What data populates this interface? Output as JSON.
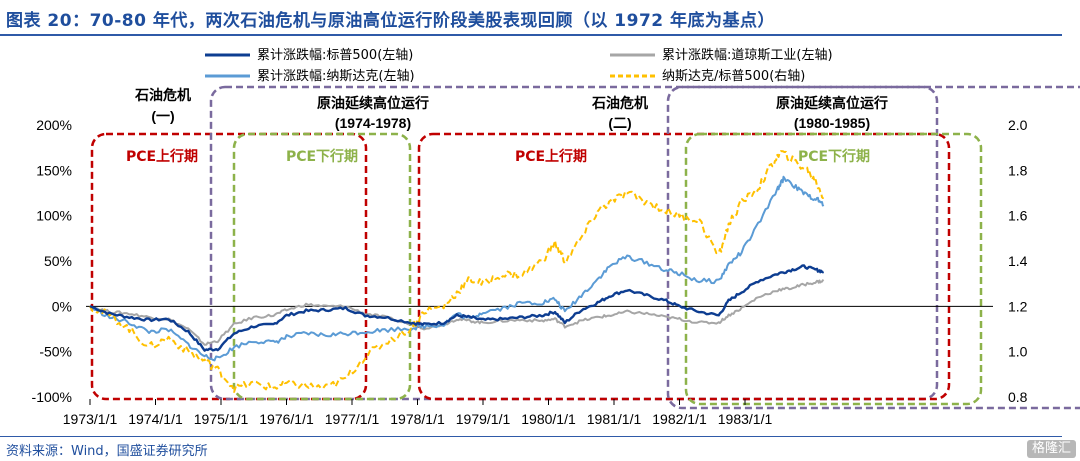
{
  "header": {
    "title": "图表 20：70-80 年代，两次石油危机与原油高位运行阶段美股表现回顾（以 1972 年底为基点）"
  },
  "footer": {
    "source": "资料来源：Wind，国盛证券研究所",
    "watermark": "格隆汇"
  },
  "chart_data": {
    "type": "line",
    "x_ticks": [
      "1973/1/1",
      "1974/1/1",
      "1975/1/1",
      "1976/1/1",
      "1977/1/1",
      "1978/1/1",
      "1979/1/1",
      "1980/1/1",
      "1981/1/1",
      "1982/1/1",
      "1983/1/1"
    ],
    "left_axis": {
      "ticks": [
        "-100%",
        "-50%",
        "0%",
        "50%",
        "100%",
        "150%",
        "200%"
      ],
      "range": [
        -1.0,
        2.0
      ]
    },
    "right_axis": {
      "ticks": [
        "0.8",
        "1.0",
        "1.2",
        "1.4",
        "1.6",
        "1.8",
        "2.0"
      ],
      "range": [
        0.8,
        2.0
      ]
    },
    "grid": false,
    "legend_position": "top",
    "series": [
      {
        "name": "累计涨跌幅:标普500(左轴)",
        "axis": "left",
        "color": "#0d3d91",
        "style": "solid",
        "points": [
          [
            1973.0,
            0.0
          ],
          [
            1973.3,
            -0.08
          ],
          [
            1973.6,
            -0.12
          ],
          [
            1973.9,
            -0.15
          ],
          [
            1974.2,
            -0.14
          ],
          [
            1974.5,
            -0.28
          ],
          [
            1974.75,
            -0.48
          ],
          [
            1974.95,
            -0.47
          ],
          [
            1975.2,
            -0.3
          ],
          [
            1975.5,
            -0.22
          ],
          [
            1975.8,
            -0.2
          ],
          [
            1976.0,
            -0.1
          ],
          [
            1976.3,
            -0.05
          ],
          [
            1976.6,
            -0.04
          ],
          [
            1976.9,
            -0.02
          ],
          [
            1977.2,
            -0.1
          ],
          [
            1977.5,
            -0.12
          ],
          [
            1977.9,
            -0.18
          ],
          [
            1978.1,
            -0.2
          ],
          [
            1978.4,
            -0.18
          ],
          [
            1978.6,
            -0.1
          ],
          [
            1978.8,
            -0.12
          ],
          [
            1979.0,
            -0.15
          ],
          [
            1979.3,
            -0.14
          ],
          [
            1979.6,
            -0.12
          ],
          [
            1979.9,
            -0.1
          ],
          [
            1980.1,
            -0.06
          ],
          [
            1980.25,
            -0.18
          ],
          [
            1980.5,
            -0.04
          ],
          [
            1980.75,
            0.04
          ],
          [
            1980.95,
            0.12
          ],
          [
            1981.2,
            0.18
          ],
          [
            1981.5,
            0.12
          ],
          [
            1981.8,
            0.06
          ],
          [
            1982.0,
            0.0
          ],
          [
            1982.3,
            -0.06
          ],
          [
            1982.6,
            -0.1
          ],
          [
            1982.75,
            0.06
          ],
          [
            1982.95,
            0.16
          ],
          [
            1983.2,
            0.28
          ],
          [
            1983.5,
            0.36
          ],
          [
            1983.7,
            0.4
          ],
          [
            1983.9,
            0.44
          ],
          [
            1984.1,
            0.4
          ],
          [
            1984.2,
            0.38
          ]
        ]
      },
      {
        "name": "累计涨跌幅:道琼斯工业(左轴)",
        "axis": "left",
        "color": "#a6a6a6",
        "style": "solid",
        "points": [
          [
            1973.0,
            0.0
          ],
          [
            1973.3,
            -0.06
          ],
          [
            1973.6,
            -0.08
          ],
          [
            1973.9,
            -0.12
          ],
          [
            1974.2,
            -0.14
          ],
          [
            1974.5,
            -0.25
          ],
          [
            1974.75,
            -0.42
          ],
          [
            1974.95,
            -0.38
          ],
          [
            1975.2,
            -0.2
          ],
          [
            1975.5,
            -0.12
          ],
          [
            1975.8,
            -0.1
          ],
          [
            1976.0,
            -0.04
          ],
          [
            1976.3,
            0.02
          ],
          [
            1976.6,
            0.0
          ],
          [
            1976.9,
            0.0
          ],
          [
            1977.2,
            -0.08
          ],
          [
            1977.5,
            -0.12
          ],
          [
            1977.9,
            -0.2
          ],
          [
            1978.1,
            -0.24
          ],
          [
            1978.4,
            -0.2
          ],
          [
            1978.6,
            -0.14
          ],
          [
            1978.8,
            -0.16
          ],
          [
            1979.0,
            -0.18
          ],
          [
            1979.3,
            -0.16
          ],
          [
            1979.6,
            -0.15
          ],
          [
            1979.9,
            -0.16
          ],
          [
            1980.1,
            -0.14
          ],
          [
            1980.25,
            -0.22
          ],
          [
            1980.5,
            -0.16
          ],
          [
            1980.75,
            -0.12
          ],
          [
            1980.95,
            -0.1
          ],
          [
            1981.2,
            -0.06
          ],
          [
            1981.5,
            -0.08
          ],
          [
            1981.8,
            -0.12
          ],
          [
            1982.0,
            -0.14
          ],
          [
            1982.3,
            -0.18
          ],
          [
            1982.6,
            -0.18
          ],
          [
            1982.75,
            -0.1
          ],
          [
            1982.95,
            -0.02
          ],
          [
            1983.2,
            0.1
          ],
          [
            1983.5,
            0.18
          ],
          [
            1983.7,
            0.2
          ],
          [
            1983.9,
            0.24
          ],
          [
            1984.1,
            0.27
          ],
          [
            1984.2,
            0.28
          ]
        ]
      },
      {
        "name": "累计涨跌幅:纳斯达克(左轴)",
        "axis": "left",
        "color": "#5b9bd5",
        "style": "solid",
        "points": [
          [
            1973.0,
            0.0
          ],
          [
            1973.3,
            -0.12
          ],
          [
            1973.6,
            -0.18
          ],
          [
            1973.9,
            -0.28
          ],
          [
            1974.2,
            -0.26
          ],
          [
            1974.5,
            -0.42
          ],
          [
            1974.75,
            -0.55
          ],
          [
            1974.95,
            -0.58
          ],
          [
            1975.2,
            -0.45
          ],
          [
            1975.5,
            -0.38
          ],
          [
            1975.8,
            -0.4
          ],
          [
            1976.0,
            -0.34
          ],
          [
            1976.3,
            -0.3
          ],
          [
            1976.6,
            -0.32
          ],
          [
            1976.9,
            -0.3
          ],
          [
            1977.2,
            -0.28
          ],
          [
            1977.5,
            -0.26
          ],
          [
            1977.9,
            -0.24
          ],
          [
            1978.1,
            -0.22
          ],
          [
            1978.4,
            -0.2
          ],
          [
            1978.6,
            -0.08
          ],
          [
            1978.8,
            -0.14
          ],
          [
            1979.0,
            -0.06
          ],
          [
            1979.3,
            -0.02
          ],
          [
            1979.6,
            0.04
          ],
          [
            1979.9,
            0.04
          ],
          [
            1980.1,
            0.08
          ],
          [
            1980.25,
            -0.06
          ],
          [
            1980.5,
            0.12
          ],
          [
            1980.75,
            0.3
          ],
          [
            1980.95,
            0.45
          ],
          [
            1981.2,
            0.55
          ],
          [
            1981.5,
            0.48
          ],
          [
            1981.8,
            0.4
          ],
          [
            1982.0,
            0.36
          ],
          [
            1982.3,
            0.28
          ],
          [
            1982.6,
            0.28
          ],
          [
            1982.75,
            0.46
          ],
          [
            1982.95,
            0.6
          ],
          [
            1983.2,
            0.9
          ],
          [
            1983.5,
            1.3
          ],
          [
            1983.6,
            1.42
          ],
          [
            1983.8,
            1.3
          ],
          [
            1983.95,
            1.22
          ],
          [
            1984.1,
            1.18
          ],
          [
            1984.2,
            1.12
          ]
        ]
      },
      {
        "name": "纳斯达克/标普500(右轴)",
        "axis": "right",
        "color": "#ffc000",
        "style": "dashed",
        "points": [
          [
            1973.0,
            1.2
          ],
          [
            1973.3,
            1.16
          ],
          [
            1973.6,
            1.1
          ],
          [
            1973.9,
            1.02
          ],
          [
            1974.2,
            1.06
          ],
          [
            1974.5,
            1.0
          ],
          [
            1974.75,
            0.96
          ],
          [
            1974.95,
            0.92
          ],
          [
            1975.2,
            0.84
          ],
          [
            1975.5,
            0.86
          ],
          [
            1975.8,
            0.84
          ],
          [
            1976.0,
            0.86
          ],
          [
            1976.3,
            0.85
          ],
          [
            1976.6,
            0.84
          ],
          [
            1976.9,
            0.88
          ],
          [
            1977.2,
            0.98
          ],
          [
            1977.5,
            1.04
          ],
          [
            1977.9,
            1.1
          ],
          [
            1978.1,
            1.18
          ],
          [
            1978.4,
            1.2
          ],
          [
            1978.6,
            1.26
          ],
          [
            1978.8,
            1.32
          ],
          [
            1979.0,
            1.3
          ],
          [
            1979.3,
            1.34
          ],
          [
            1979.6,
            1.34
          ],
          [
            1979.9,
            1.4
          ],
          [
            1980.1,
            1.48
          ],
          [
            1980.25,
            1.4
          ],
          [
            1980.5,
            1.5
          ],
          [
            1980.75,
            1.62
          ],
          [
            1980.95,
            1.66
          ],
          [
            1981.2,
            1.7
          ],
          [
            1981.5,
            1.66
          ],
          [
            1981.8,
            1.62
          ],
          [
            1982.0,
            1.6
          ],
          [
            1982.3,
            1.58
          ],
          [
            1982.6,
            1.42
          ],
          [
            1982.75,
            1.56
          ],
          [
            1982.95,
            1.66
          ],
          [
            1983.2,
            1.72
          ],
          [
            1983.4,
            1.82
          ],
          [
            1983.55,
            1.88
          ],
          [
            1983.75,
            1.84
          ],
          [
            1983.95,
            1.8
          ],
          [
            1984.1,
            1.74
          ],
          [
            1984.2,
            1.68
          ]
        ]
      }
    ],
    "period_boxes": [
      {
        "id": "crisis-1",
        "title": "石油危机",
        "subtitle": "(一)",
        "color": "#c00000",
        "inner_label": "PCE上行期",
        "inner_color": "#c00000"
      },
      {
        "id": "high-1",
        "title": "原油延续高位运行",
        "subtitle": "(1974-1978)",
        "color": "#7a6a9e",
        "inner_label": "PCE下行期",
        "inner_color": "#8db24a"
      },
      {
        "id": "crisis-2",
        "title": "石油危机",
        "subtitle": "(二)",
        "color": "#c00000",
        "inner_label": "PCE上行期",
        "inner_color": "#c00000"
      },
      {
        "id": "high-2",
        "title": "原油延续高位运行",
        "subtitle": "(1980-1985)",
        "color": "#7a6a9e",
        "inner_label": "PCE下行期",
        "inner_color": "#8db24a"
      }
    ]
  }
}
